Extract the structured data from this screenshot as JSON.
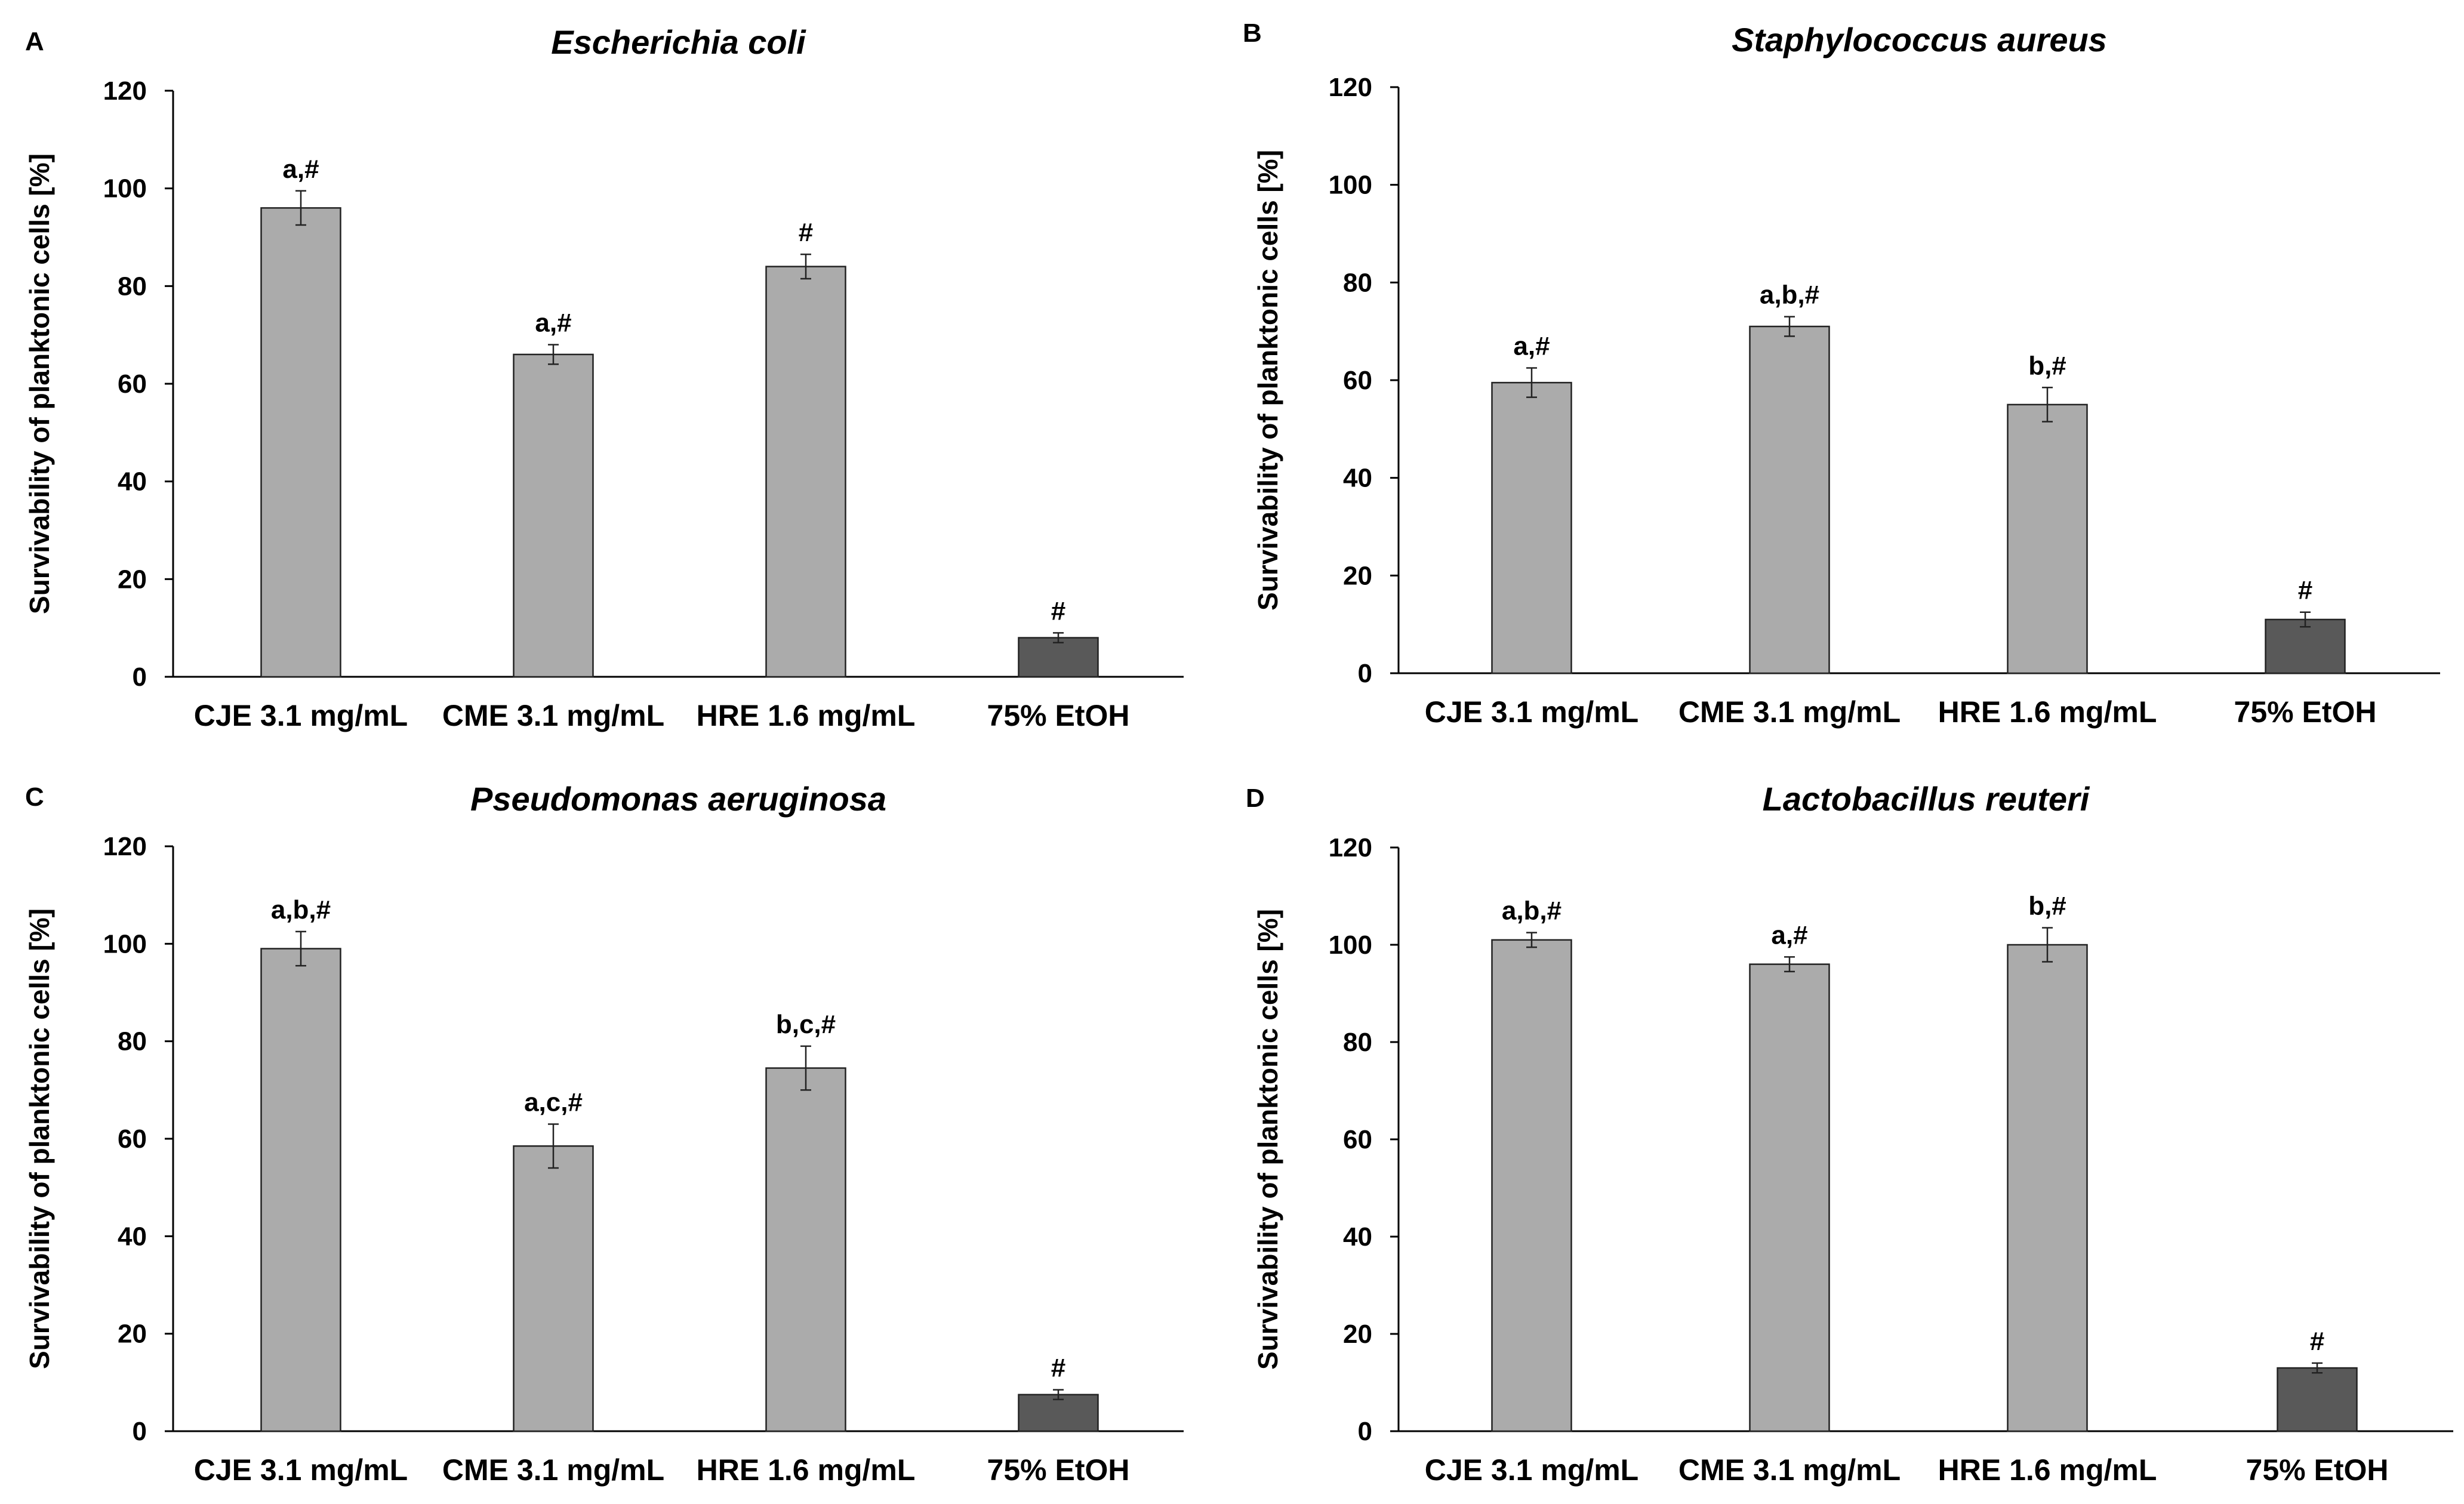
{
  "chart_data": [
    {
      "panel": "A",
      "type": "bar",
      "title": "Escherichia coli",
      "ylabel": "Survivability of planktonic cells [%]",
      "xlabel": "",
      "ylim": [
        0,
        120
      ],
      "yticks": [
        0,
        20,
        40,
        60,
        80,
        100,
        120
      ],
      "categories": [
        "CJE 3.1 mg/mL",
        "CME 3.1 mg/mL",
        "HRE 1.6 mg/mL",
        "75% EtOH"
      ],
      "values": [
        96,
        66,
        84,
        8
      ],
      "errors": [
        3.5,
        2.0,
        2.5,
        1.0
      ],
      "annotations": [
        "a,#",
        "a,#",
        "#",
        "#"
      ],
      "colors": [
        "#ababab",
        "#ababab",
        "#ababab",
        "#595959"
      ]
    },
    {
      "panel": "B",
      "type": "bar",
      "title": "Staphylococcus aureus",
      "ylabel": "Survivability of planktonic cells [%]",
      "xlabel": "",
      "ylim": [
        0,
        120
      ],
      "yticks": [
        0,
        20,
        40,
        60,
        80,
        100,
        120
      ],
      "categories": [
        "CJE 3.1 mg/mL",
        "CME 3.1 mg/mL",
        "HRE 1.6 mg/mL",
        "75% EtOH"
      ],
      "values": [
        59.5,
        71,
        55,
        11
      ],
      "errors": [
        3.0,
        2.0,
        3.5,
        1.5
      ],
      "annotations": [
        "a,#",
        "a,b,#",
        "b,#",
        "#"
      ],
      "colors": [
        "#ababab",
        "#ababab",
        "#ababab",
        "#595959"
      ]
    },
    {
      "panel": "C",
      "type": "bar",
      "title": "Pseudomonas aeruginosa",
      "ylabel": "Survivability of planktonic cells [%]",
      "xlabel": "",
      "ylim": [
        0,
        120
      ],
      "yticks": [
        0,
        20,
        40,
        60,
        80,
        100,
        120
      ],
      "categories": [
        "CJE 3.1 mg/mL",
        "CME 3.1 mg/mL",
        "HRE 1.6 mg/mL",
        "75% EtOH"
      ],
      "values": [
        99,
        58.5,
        74.5,
        7.5
      ],
      "errors": [
        3.5,
        4.5,
        4.5,
        1.0
      ],
      "annotations": [
        "a,b,#",
        "a,c,#",
        "b,c,#",
        "#"
      ],
      "colors": [
        "#ababab",
        "#ababab",
        "#ababab",
        "#595959"
      ]
    },
    {
      "panel": "D",
      "type": "bar",
      "title": "Lactobacillus reuteri",
      "ylabel": "Survivability of planktonic cells [%]",
      "xlabel": "",
      "ylim": [
        0,
        120
      ],
      "yticks": [
        0,
        20,
        40,
        60,
        80,
        100,
        120
      ],
      "categories": [
        "CJE 3.1 mg/mL",
        "CME 3.1 mg/mL",
        "HRE 1.6 mg/mL",
        "75% EtOH"
      ],
      "values": [
        101,
        96,
        100,
        13
      ],
      "errors": [
        1.5,
        1.5,
        3.5,
        1.0
      ],
      "annotations": [
        "a,b,#",
        "a,#",
        "b,#",
        "#"
      ],
      "colors": [
        "#ababab",
        "#ababab",
        "#ababab",
        "#595959"
      ]
    }
  ]
}
